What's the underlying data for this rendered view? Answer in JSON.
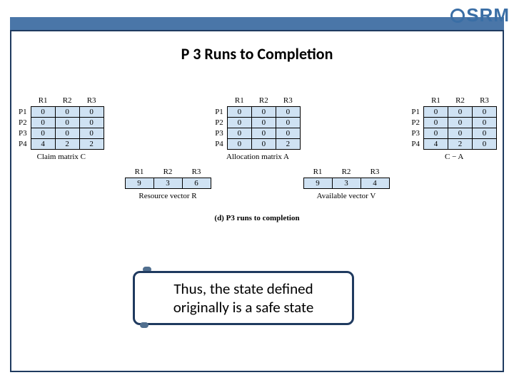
{
  "title": "P 3 Runs to Completion",
  "logo_text": "SRM",
  "matrix_headers": [
    "R1",
    "R2",
    "R3"
  ],
  "row_labels": [
    "P1",
    "P2",
    "P3",
    "P4"
  ],
  "claim": {
    "caption": "Claim matrix C",
    "rows": [
      [
        0,
        0,
        0
      ],
      [
        0,
        0,
        0
      ],
      [
        0,
        0,
        0
      ],
      [
        4,
        2,
        2
      ]
    ]
  },
  "alloc": {
    "caption": "Allocation matrix A",
    "rows": [
      [
        0,
        0,
        0
      ],
      [
        0,
        0,
        0
      ],
      [
        0,
        0,
        0
      ],
      [
        0,
        0,
        2
      ]
    ]
  },
  "cma": {
    "caption": "C − A",
    "rows": [
      [
        0,
        0,
        0
      ],
      [
        0,
        0,
        0
      ],
      [
        0,
        0,
        0
      ],
      [
        4,
        2,
        0
      ]
    ]
  },
  "resource_vector": {
    "caption": "Resource vector R",
    "values": [
      9,
      3,
      6
    ]
  },
  "available_vector": {
    "caption": "Available vector V",
    "values": [
      9,
      3,
      4
    ]
  },
  "figure_caption": "(d) P3 runs to completion",
  "conclusion": "Thus, the state defined originally is a safe state",
  "style": {
    "cell_bg": "#cfe2f3",
    "frame_color": "#1f3a5f",
    "band_color": "#4a76a8",
    "title_fontsize": 22,
    "body_fontsize": 11
  }
}
